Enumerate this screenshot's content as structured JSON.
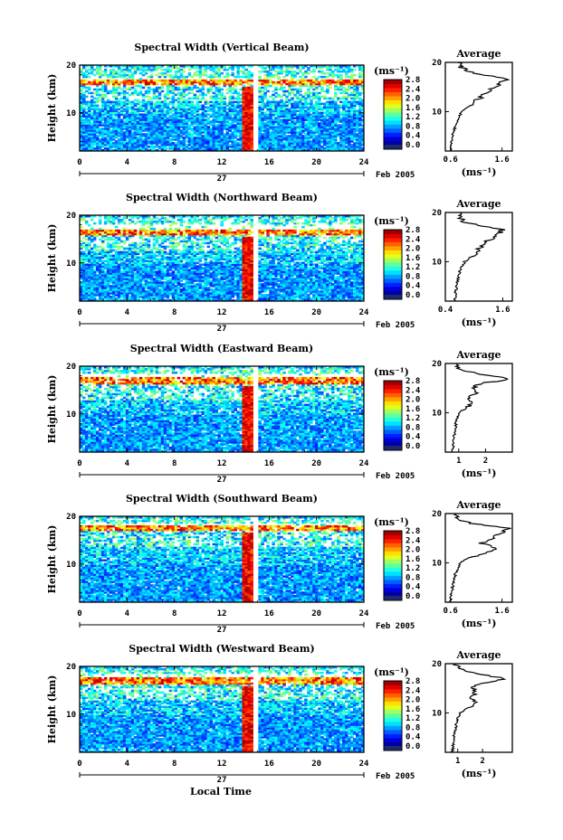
{
  "figure": {
    "x_axis_label": "Local Time",
    "date_label": "27",
    "month_label": "Feb 2005",
    "colorbar_unit": "(ms⁻¹)",
    "average_title": "Average",
    "average_unit": "(ms⁻¹)",
    "y_axis_label": "Height (km)"
  },
  "chart_data": [
    {
      "type": "heatmap",
      "title": "Spectral Width (Vertical Beam)",
      "xlabel": "",
      "ylabel": "Height (km)",
      "xlim": [
        0,
        24
      ],
      "ylim": [
        2,
        20
      ],
      "x_ticks": [
        0,
        4,
        8,
        12,
        16,
        20,
        24
      ],
      "y_ticks": [
        10,
        20
      ],
      "colorbar": {
        "min": 0.0,
        "max": 2.8,
        "ticks": [
          0.0,
          0.4,
          0.8,
          1.2,
          1.6,
          2.0,
          2.4,
          2.8
        ]
      },
      "features": {
        "storm_time": 14.2,
        "gap_time": 14.9,
        "tropopause_km": 16.5,
        "upper_band_km": [
          17.5,
          19.5
        ]
      },
      "average": {
        "xlim": [
          0.5,
          1.8
        ],
        "x_ticks": [
          0.6,
          1.6
        ],
        "height": [
          2,
          4,
          6,
          8,
          10,
          11,
          12,
          13,
          14,
          15,
          16,
          16.5,
          17,
          18,
          19,
          20
        ],
        "value": [
          0.6,
          0.62,
          0.66,
          0.72,
          0.82,
          0.95,
          1.05,
          1.2,
          1.3,
          1.45,
          1.6,
          1.75,
          1.5,
          1.0,
          0.8,
          0.75
        ]
      }
    },
    {
      "type": "heatmap",
      "title": "Spectral Width (Northward Beam)",
      "xlabel": "",
      "ylabel": "Height (km)",
      "xlim": [
        0,
        24
      ],
      "ylim": [
        2,
        20
      ],
      "x_ticks": [
        0,
        4,
        8,
        12,
        16,
        20,
        24
      ],
      "y_ticks": [
        10,
        20
      ],
      "colorbar": {
        "min": 0.0,
        "max": 2.8,
        "ticks": [
          0.0,
          0.4,
          0.8,
          1.2,
          1.6,
          2.0,
          2.4,
          2.8
        ]
      },
      "features": {
        "storm_time": 14.2,
        "gap_time": 14.9,
        "tropopause_km": 16.5,
        "upper_band_km": [
          18,
          19.5
        ]
      },
      "average": {
        "xlim": [
          0.4,
          1.8
        ],
        "x_ticks": [
          0.4,
          1.6
        ],
        "height": [
          2,
          4,
          6,
          8,
          10,
          11,
          12,
          13,
          14,
          15,
          16,
          16.5,
          17,
          18,
          19,
          20
        ],
        "value": [
          0.6,
          0.62,
          0.65,
          0.7,
          0.8,
          0.95,
          1.05,
          1.15,
          1.2,
          1.45,
          1.55,
          1.6,
          1.3,
          0.8,
          0.7,
          0.7
        ]
      }
    },
    {
      "type": "heatmap",
      "title": "Spectral Width (Eastward Beam)",
      "xlabel": "",
      "ylabel": "Height (km)",
      "xlim": [
        0,
        24
      ],
      "ylim": [
        2,
        20
      ],
      "x_ticks": [
        0,
        4,
        8,
        12,
        16,
        20,
        24
      ],
      "y_ticks": [
        10,
        20
      ],
      "colorbar": {
        "min": 0.0,
        "max": 2.8,
        "ticks": [
          0.0,
          0.4,
          0.8,
          1.2,
          1.6,
          2.0,
          2.4,
          2.8
        ]
      },
      "features": {
        "storm_time": 14.2,
        "gap_time": 14.9,
        "tropopause_km": 17.0,
        "upper_band_km": [
          18.5,
          19.5
        ]
      },
      "average": {
        "xlim": [
          0.5,
          3.0
        ],
        "x_ticks": [
          1,
          2
        ],
        "height": [
          2,
          4,
          6,
          8,
          10,
          11,
          12,
          13,
          14,
          15,
          16,
          16.5,
          17,
          18,
          19,
          20
        ],
        "value": [
          0.75,
          0.8,
          0.85,
          0.9,
          1.0,
          1.3,
          1.5,
          1.4,
          1.6,
          1.5,
          1.8,
          2.6,
          2.8,
          1.6,
          1.0,
          0.9
        ]
      }
    },
    {
      "type": "heatmap",
      "title": "Spectral Width (Southward Beam)",
      "xlabel": "",
      "ylabel": "Height (km)",
      "xlim": [
        0,
        24
      ],
      "ylim": [
        2,
        20
      ],
      "x_ticks": [
        0,
        4,
        8,
        12,
        16,
        20,
        24
      ],
      "y_ticks": [
        10,
        20
      ],
      "colorbar": {
        "min": 0.0,
        "max": 2.8,
        "ticks": [
          0.0,
          0.4,
          0.8,
          1.2,
          1.6,
          2.0,
          2.4,
          2.8
        ]
      },
      "features": {
        "storm_time": 14.2,
        "gap_time": 14.9,
        "tropopause_km": 17.5,
        "upper_band_km": [
          18.5,
          19.5
        ]
      },
      "average": {
        "xlim": [
          0.5,
          1.8
        ],
        "x_ticks": [
          0.6,
          1.6
        ],
        "height": [
          2,
          4,
          6,
          8,
          10,
          11,
          12,
          13,
          14,
          15,
          16,
          16.5,
          17,
          18,
          19,
          20
        ],
        "value": [
          0.6,
          0.62,
          0.66,
          0.7,
          0.8,
          0.95,
          1.3,
          1.5,
          1.2,
          1.4,
          1.55,
          1.65,
          1.75,
          1.0,
          0.7,
          0.7
        ]
      }
    },
    {
      "type": "heatmap",
      "title": "Spectral Width (Westward Beam)",
      "xlabel": "",
      "ylabel": "Height (km)",
      "xlim": [
        0,
        24
      ],
      "ylim": [
        2,
        20
      ],
      "x_ticks": [
        0,
        4,
        8,
        12,
        16,
        20,
        24
      ],
      "y_ticks": [
        10,
        20
      ],
      "colorbar": {
        "min": 0.0,
        "max": 2.8,
        "ticks": [
          0.0,
          0.4,
          0.8,
          1.2,
          1.6,
          2.0,
          2.4,
          2.8
        ]
      },
      "features": {
        "storm_time": 14.2,
        "gap_time": 14.9,
        "tropopause_km": 17.0,
        "upper_band_km": [
          18.5,
          19.5
        ]
      },
      "average": {
        "xlim": [
          0.5,
          3.2
        ],
        "x_ticks": [
          1,
          2
        ],
        "height": [
          2,
          4,
          6,
          8,
          10,
          11,
          12,
          13,
          14,
          15,
          16,
          16.5,
          17,
          18,
          19,
          20
        ],
        "value": [
          0.8,
          0.82,
          0.88,
          0.95,
          1.1,
          1.4,
          1.7,
          1.6,
          1.7,
          1.6,
          1.9,
          2.5,
          2.9,
          1.7,
          1.1,
          0.9
        ]
      }
    }
  ]
}
